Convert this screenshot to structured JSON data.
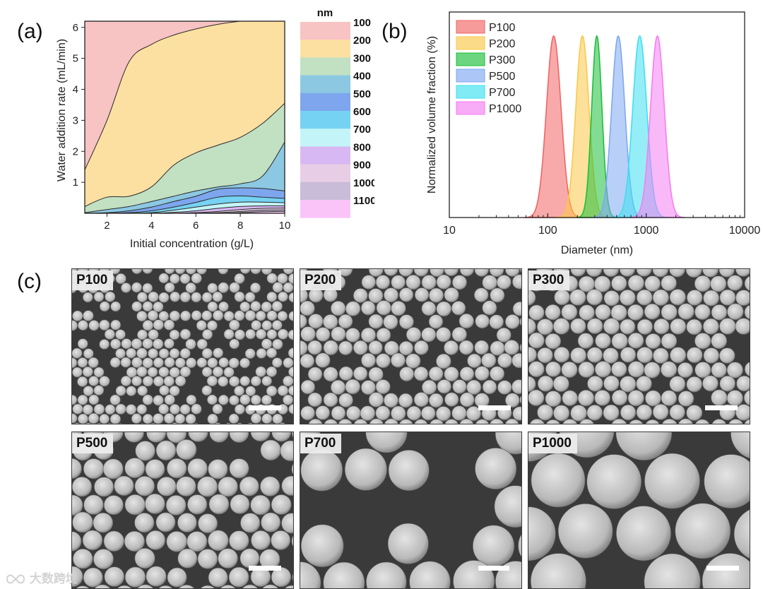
{
  "panels": {
    "a": "(a)",
    "b": "(b)",
    "c": "(c)"
  },
  "chart_data": [
    {
      "type": "area",
      "panel": "a",
      "xlabel": "Initial concentration (g/L)",
      "ylabel": "Water addition rate (mL/min)",
      "xlim": [
        1,
        10
      ],
      "ylim": [
        0,
        6.2
      ],
      "xticks": [
        2,
        4,
        6,
        8,
        10
      ],
      "yticks": [
        1,
        2,
        3,
        4,
        5,
        6
      ],
      "boundaries_x": [
        1,
        2,
        3,
        4,
        5,
        6,
        7,
        8,
        9,
        10
      ],
      "boundaries": [
        {
          "lower": "100",
          "upper": "200",
          "y": [
            1.4,
            3.0,
            4.9,
            5.45,
            5.75,
            5.95,
            6.1,
            6.2,
            6.25,
            6.3
          ]
        },
        {
          "lower": "200",
          "upper": "300",
          "y": [
            0.22,
            0.52,
            0.55,
            0.85,
            1.55,
            1.95,
            2.2,
            2.45,
            2.9,
            3.55
          ]
        },
        {
          "lower": "300",
          "upper": "400",
          "y": [
            0.02,
            0.12,
            0.22,
            0.38,
            0.55,
            0.72,
            0.85,
            0.95,
            1.2,
            2.3
          ]
        },
        {
          "lower": "400",
          "upper": "500",
          "y": [
            0.0,
            0.02,
            0.08,
            0.2,
            0.38,
            0.55,
            0.78,
            0.82,
            0.8,
            0.72
          ]
        },
        {
          "lower": "500",
          "upper": "600",
          "y": [
            0.0,
            0.0,
            0.02,
            0.08,
            0.2,
            0.35,
            0.52,
            0.56,
            0.52,
            0.48
          ]
        },
        {
          "lower": "600",
          "upper": "700",
          "y": [
            0.0,
            0.0,
            0.0,
            0.02,
            0.1,
            0.2,
            0.3,
            0.36,
            0.36,
            0.34
          ]
        },
        {
          "lower": "700",
          "upper": "800",
          "y": [
            0.0,
            0.0,
            0.0,
            0.0,
            0.03,
            0.08,
            0.16,
            0.22,
            0.24,
            0.24
          ]
        },
        {
          "lower": "800",
          "upper": "900",
          "y": [
            0.0,
            0.0,
            0.0,
            0.0,
            0.0,
            0.02,
            0.06,
            0.12,
            0.16,
            0.17
          ]
        },
        {
          "lower": "900",
          "upper": "1000",
          "y": [
            0.0,
            0.0,
            0.0,
            0.0,
            0.0,
            0.0,
            0.02,
            0.06,
            0.1,
            0.11
          ]
        },
        {
          "lower": "1000",
          "upper": "1100",
          "y": [
            0.0,
            0.0,
            0.0,
            0.0,
            0.0,
            0.0,
            0.0,
            0.02,
            0.05,
            0.06
          ]
        }
      ],
      "colorbar": {
        "title": "nm",
        "levels": [
          "100",
          "200",
          "300",
          "400",
          "500",
          "600",
          "700",
          "800",
          "900",
          "1000",
          "1100"
        ],
        "colors": [
          "#f8c3c3",
          "#fbe0a1",
          "#c2e0c2",
          "#8cc8e2",
          "#7da6ee",
          "#76d2f2",
          "#c3f5f8",
          "#d8b8f2",
          "#e8cde6",
          "#c8bcd8",
          "#fbc4f8"
        ]
      }
    },
    {
      "type": "area",
      "panel": "b",
      "xlabel": "Diameter (nm)",
      "ylabel": "Normalized volume fraction (%)",
      "xscale": "log",
      "xlim": [
        10,
        10000
      ],
      "xticks": [
        10,
        100,
        1000,
        10000
      ],
      "xticklabels": [
        "10",
        "100",
        "1000",
        "10000"
      ],
      "legend_position": "top-left",
      "series": [
        {
          "name": "P100",
          "peak": 115,
          "log_sigma": 0.074,
          "color": "#f26464"
        },
        {
          "name": "P200",
          "peak": 225,
          "log_sigma": 0.067,
          "color": "#fbc848"
        },
        {
          "name": "P300",
          "peak": 315,
          "log_sigma": 0.052,
          "color": "#1dbf3a"
        },
        {
          "name": "P500",
          "peak": 520,
          "log_sigma": 0.067,
          "color": "#7ea8f2"
        },
        {
          "name": "P700",
          "peak": 860,
          "log_sigma": 0.071,
          "color": "#3ee0f0"
        },
        {
          "name": "P1000",
          "peak": 1300,
          "log_sigma": 0.07,
          "color": "#f47ef2"
        }
      ]
    }
  ],
  "sem_images": [
    {
      "label": "P100"
    },
    {
      "label": "P200"
    },
    {
      "label": "P300"
    },
    {
      "label": "P500"
    },
    {
      "label": "P700"
    },
    {
      "label": "P1000"
    }
  ],
  "watermark": "大数跨境"
}
